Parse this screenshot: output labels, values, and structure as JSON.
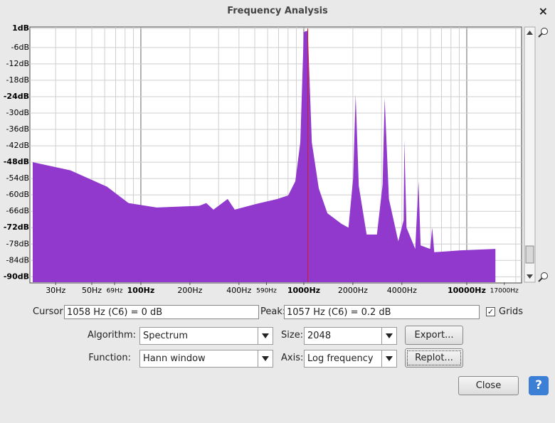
{
  "window": {
    "title": "Frequency Analysis",
    "close": "×"
  },
  "chart_data": {
    "type": "area",
    "xlog": true,
    "grid": true,
    "color": "#9139cc",
    "cursor": 1058,
    "xlim": [
      21.7,
      21700
    ],
    "ylim": [
      1,
      -92
    ],
    "xticks": [
      {
        "value": 30,
        "label": "30Hz"
      },
      {
        "value": 50,
        "label": "50Hz"
      },
      {
        "value": 69,
        "label": "69Hz",
        "small": true
      },
      {
        "value": 100,
        "label": "100Hz",
        "bold": true
      },
      {
        "value": 200,
        "label": "200Hz"
      },
      {
        "value": 400,
        "label": "400Hz"
      },
      {
        "value": 590,
        "label": "590Hz",
        "small": true
      },
      {
        "value": 1000,
        "label": "1000Hz",
        "bold": true
      },
      {
        "value": 2000,
        "label": "2000Hz"
      },
      {
        "value": 4000,
        "label": "4000Hz"
      },
      {
        "value": 10000,
        "label": "10000Hz",
        "bold": true
      },
      {
        "value": 17000,
        "label": "17000Hz",
        "small": true
      }
    ],
    "yticks": [
      {
        "value": 1,
        "label": "1dB",
        "bold": true
      },
      {
        "value": -6,
        "label": "-6dB"
      },
      {
        "value": -12,
        "label": "-12dB"
      },
      {
        "value": -18,
        "label": "-18dB"
      },
      {
        "value": -24,
        "label": "-24dB",
        "bold": true
      },
      {
        "value": -30,
        "label": "-30dB"
      },
      {
        "value": -36,
        "label": "-36dB"
      },
      {
        "value": -42,
        "label": "-42dB"
      },
      {
        "value": -48,
        "label": "-48dB",
        "bold": true
      },
      {
        "value": -54,
        "label": "-54dB"
      },
      {
        "value": -60,
        "label": "-60dB"
      },
      {
        "value": -66,
        "label": "-66dB"
      },
      {
        "value": -72,
        "label": "-72dB",
        "bold": true
      },
      {
        "value": -78,
        "label": "-78dB"
      },
      {
        "value": -84,
        "label": "-84dB"
      },
      {
        "value": -90,
        "label": "-90dB",
        "bold": true
      }
    ],
    "x": [
      21.7,
      37,
      62,
      84,
      125,
      228,
      252,
      279,
      341,
      377,
      510,
      688,
      802,
      887,
      952,
      1000,
      1058,
      1120,
      1236,
      1395,
      1705,
      1880,
      2010,
      2080,
      2175,
      2430,
      2810,
      3045,
      3135,
      3330,
      3800,
      4100,
      4140,
      4270,
      4830,
      5060,
      5210,
      5960,
      6140,
      6320,
      9230,
      15000
    ],
    "values": [
      -48,
      -51,
      -57,
      -63,
      -64.6,
      -64,
      -63,
      -65.4,
      -61.5,
      -65.4,
      -63.3,
      -61.5,
      -60.2,
      -55,
      -40.7,
      -0.3,
      0.2,
      -40.7,
      -57.6,
      -66.7,
      -70.6,
      -72,
      -53.7,
      -23.2,
      -56.7,
      -74.5,
      -74.5,
      -56.3,
      -24.5,
      -61.5,
      -77,
      -69.3,
      -40,
      -72,
      -79.8,
      -55,
      -78.5,
      -79.8,
      -72,
      -81,
      -80.3,
      -79.8
    ]
  },
  "controls": {
    "cursor_label": "Cursor:",
    "cursor_value": "1058 Hz (C6) = 0 dB",
    "peak_label": "Peak:",
    "peak_value": "1057 Hz (C6) = 0.2 dB",
    "grids_label": "Grids",
    "grids_checked": true,
    "algorithm_label": "Algorithm:",
    "algorithm_value": "Spectrum",
    "size_label": "Size:",
    "size_value": "2048",
    "export": "Export...",
    "function_label": "Function:",
    "function_value": "Hann window",
    "axis_label": "Axis:",
    "axis_value": "Log frequency",
    "replot": "Replot...",
    "close": "Close",
    "help": "?"
  }
}
